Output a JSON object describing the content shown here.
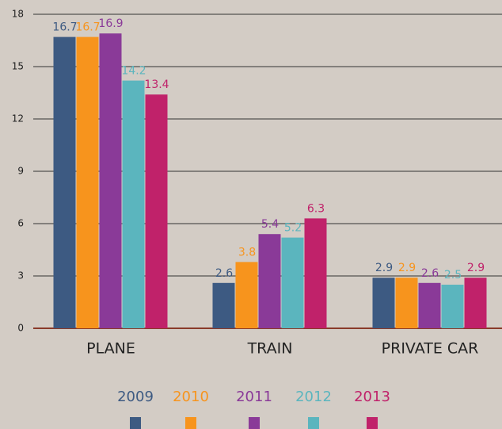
{
  "chart_data": {
    "type": "bar",
    "categories": [
      "PLANE",
      "TRAIN",
      "PRIVATE CAR"
    ],
    "series": [
      {
        "name": "2009",
        "color": "#3d5a82",
        "values": [
          16.7,
          2.6,
          2.9
        ]
      },
      {
        "name": "2010",
        "color": "#f7941d",
        "values": [
          16.7,
          3.8,
          2.9
        ]
      },
      {
        "name": "2011",
        "color": "#8a3a98",
        "values": [
          16.9,
          5.4,
          2.6
        ]
      },
      {
        "name": "2012",
        "color": "#5bb5be",
        "values": [
          14.2,
          5.2,
          2.5
        ]
      },
      {
        "name": "2013",
        "color": "#c0226a",
        "values": [
          13.4,
          6.3,
          2.9
        ]
      }
    ],
    "ylim": [
      0,
      18
    ],
    "yticks": [
      0,
      3,
      6,
      9,
      12,
      15,
      18
    ],
    "grid": true,
    "legend": "bottom"
  }
}
